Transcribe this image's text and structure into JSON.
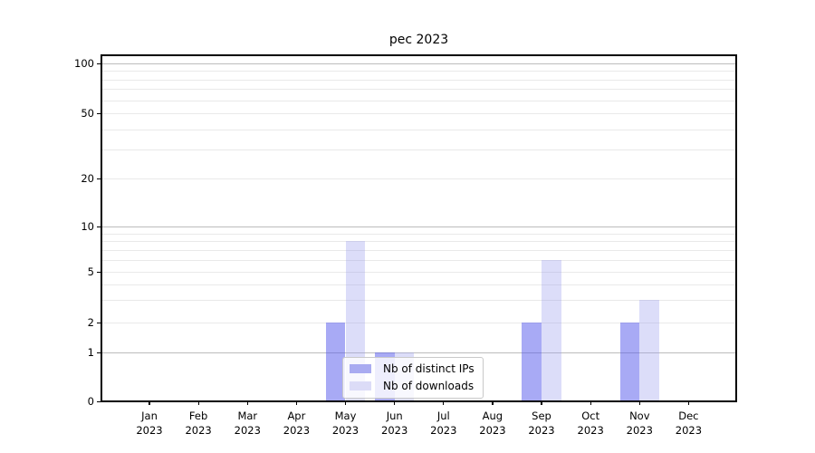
{
  "figure": {
    "title": "pec 2023"
  },
  "chart_data": {
    "type": "bar",
    "title": "pec 2023",
    "categories": [
      "Jan 2023",
      "Feb 2023",
      "Mar 2023",
      "Apr 2023",
      "May 2023",
      "Jun 2023",
      "Jul 2023",
      "Aug 2023",
      "Sep 2023",
      "Oct 2023",
      "Nov 2023",
      "Dec 2023"
    ],
    "series": [
      {
        "name": "Nb of distinct IPs",
        "values": [
          0,
          0,
          0,
          0,
          2,
          1,
          0,
          0,
          2,
          0,
          2,
          0
        ],
        "swatch_color": "#a9abf1",
        "bar_color": "rgba(81,85,235,0.5)"
      },
      {
        "name": "Nb of downloads",
        "values": [
          0,
          0,
          0,
          0,
          8,
          1,
          0,
          0,
          6,
          0,
          3,
          0
        ],
        "swatch_color": "#dcdcf7",
        "bar_color": "rgba(155,158,238,0.35)"
      }
    ],
    "xlabel": "",
    "ylabel": "",
    "yscale": "symlog",
    "yticks": [
      0,
      1,
      2,
      5,
      10,
      20,
      50,
      100
    ],
    "ylim": [
      0,
      115
    ],
    "grid": true,
    "legend": {
      "position": "lower-center-inside",
      "labels": [
        "Nb of distinct IPs",
        "Nb of downloads"
      ]
    }
  }
}
